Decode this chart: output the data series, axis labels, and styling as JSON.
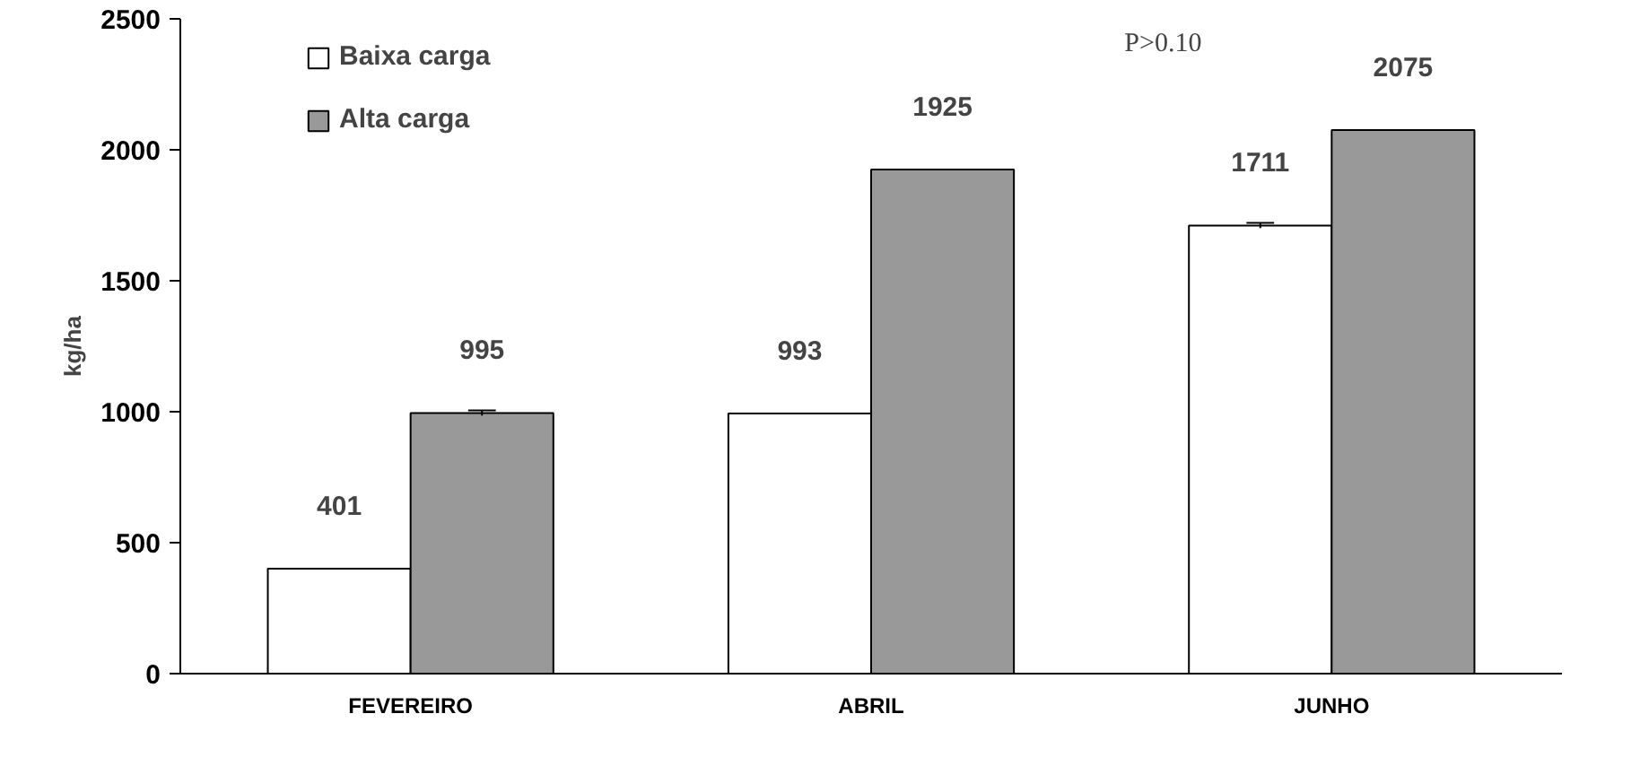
{
  "chart_data": {
    "type": "bar",
    "ylabel": "kg/ha",
    "categories": [
      "FEVEREIRO",
      "ABRIL",
      "JUNHO"
    ],
    "series": [
      {
        "name": "Baixa carga",
        "color": "#ffffff",
        "values": [
          401,
          993,
          1711
        ],
        "errors": [
          null,
          null,
          10
        ]
      },
      {
        "name": "Alta carga",
        "color": "#999999",
        "values": [
          995,
          1925,
          2075
        ],
        "errors": [
          10,
          null,
          null
        ]
      }
    ],
    "ylim": [
      0,
      2500
    ],
    "yticks": [
      0,
      500,
      1000,
      1500,
      2000,
      2500
    ],
    "data_labels": true,
    "legend": "top left",
    "grid": false,
    "annotations": [
      "P>0.10"
    ]
  }
}
